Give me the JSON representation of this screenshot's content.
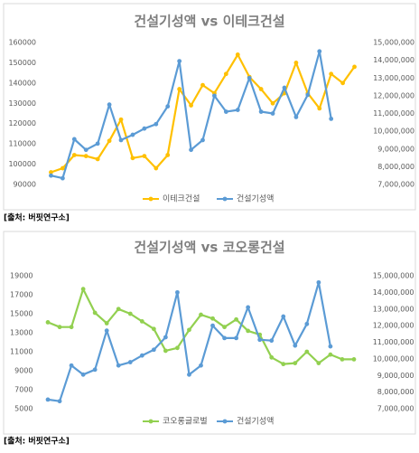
{
  "chart_data": [
    {
      "type": "line",
      "title": "건설기성액 vs 이테크건설",
      "source": "[출처: 버핏연구소]",
      "ylim": [
        90000,
        160000
      ],
      "yticks": [
        90000,
        100000,
        110000,
        120000,
        130000,
        140000,
        150000,
        160000
      ],
      "y2lim": [
        7000000,
        15000000
      ],
      "y2ticks": [
        {
          "value": 7000000,
          "label": "7,000,000"
        },
        {
          "value": 8000000,
          "label": "8,000,000"
        },
        {
          "value": 9000000,
          "label": "9,000,000"
        },
        {
          "value": 10000000,
          "label": "10,000,000"
        },
        {
          "value": 11000000,
          "label": "11,000,000"
        },
        {
          "value": 12000000,
          "label": "12,000,000"
        },
        {
          "value": 13000000,
          "label": "13,000,000"
        },
        {
          "value": 14000000,
          "label": "14,000,000"
        },
        {
          "value": 15000000,
          "label": "15,000,000"
        }
      ],
      "legend": "bottom",
      "grid": false,
      "series": [
        {
          "name": "이테크건설",
          "color": "#ffc000",
          "axis": "y",
          "values": [
            96000,
            98000,
            104500,
            104000,
            102500,
            111500,
            122000,
            103000,
            104000,
            98000,
            104500,
            137000,
            129000,
            139000,
            135000,
            144500,
            154000,
            143000,
            137000,
            130000,
            135000,
            150000,
            135000,
            127500,
            144500,
            140000,
            148000
          ]
        },
        {
          "name": "건설기성액",
          "color": "#5b9bd5",
          "axis": "y2",
          "values": [
            7500000,
            7350000,
            9550000,
            8950000,
            9300000,
            11500000,
            9500000,
            9800000,
            10150000,
            10400000,
            11400000,
            13950000,
            8950000,
            9500000,
            12000000,
            11100000,
            11200000,
            13000000,
            11100000,
            11000000,
            12450000,
            10800000,
            12050000,
            14500000,
            10700000,
            null,
            null
          ]
        }
      ]
    },
    {
      "type": "line",
      "title": "건설기성액 vs 코오롱건설",
      "source": "[출처: 버핏연구소]",
      "ylim": [
        5000,
        19000
      ],
      "yticks": [
        5000,
        7000,
        9000,
        11000,
        13000,
        15000,
        17000,
        19000
      ],
      "y2lim": [
        7000000,
        15000000
      ],
      "y2ticks": [
        {
          "value": 7000000,
          "label": "7,000,000"
        },
        {
          "value": 8000000,
          "label": "8,000,000"
        },
        {
          "value": 9000000,
          "label": "9,000,000"
        },
        {
          "value": 10000000,
          "label": "10,000,000"
        },
        {
          "value": 11000000,
          "label": "11,000,000"
        },
        {
          "value": 12000000,
          "label": "12,000,000"
        },
        {
          "value": 13000000,
          "label": "13,000,000"
        },
        {
          "value": 14000000,
          "label": "14,000,000"
        },
        {
          "value": 15000000,
          "label": "15,000,000"
        }
      ],
      "legend": "bottom",
      "grid": false,
      "series": [
        {
          "name": "코오롱글로벌",
          "color": "#92d050",
          "axis": "y",
          "values": [
            14100,
            13600,
            13600,
            17600,
            15100,
            14000,
            15500,
            15000,
            14200,
            13400,
            11100,
            11400,
            13300,
            14900,
            14500,
            13600,
            14400,
            13200,
            12800,
            10400,
            9700,
            9800,
            11000,
            9800,
            10700,
            10200,
            10200
          ]
        },
        {
          "name": "건설기성액",
          "color": "#5b9bd5",
          "axis": "y2",
          "values": [
            7550000,
            7450000,
            9600000,
            9050000,
            9350000,
            11700000,
            9600000,
            9800000,
            10200000,
            10550000,
            11300000,
            14000000,
            9050000,
            9600000,
            12000000,
            11250000,
            11250000,
            13100000,
            11150000,
            11100000,
            12550000,
            10800000,
            12100000,
            14600000,
            10750000,
            null,
            null
          ]
        }
      ]
    }
  ]
}
